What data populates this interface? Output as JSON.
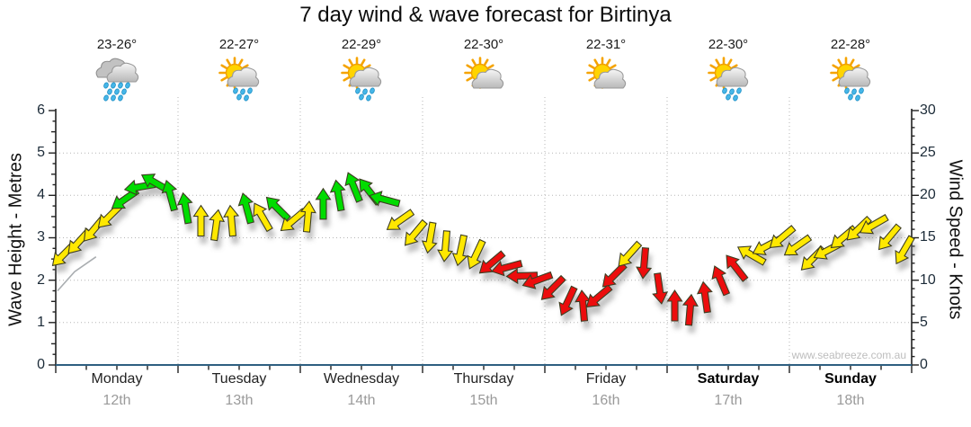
{
  "title": "7 day wind & wave forecast for Birtinya",
  "watermark": "www.seabreeze.com.au",
  "axes": {
    "left_label": "Wave Height - Metres",
    "right_label": "Wind Speed - Knots",
    "left_ticks": [
      "0",
      "1",
      "2",
      "3",
      "4",
      "5",
      "6"
    ],
    "right_ticks": [
      "0",
      "5",
      "10",
      "15",
      "20",
      "25",
      "30"
    ]
  },
  "days": [
    {
      "name": "Monday",
      "date": "12th",
      "temp": "23-26°",
      "icon": "rain"
    },
    {
      "name": "Tuesday",
      "date": "13th",
      "temp": "22-27°",
      "icon": "sun-shower"
    },
    {
      "name": "Wednesday",
      "date": "14th",
      "temp": "22-29°",
      "icon": "sun-shower"
    },
    {
      "name": "Thursday",
      "date": "15th",
      "temp": "22-30°",
      "icon": "partly-cloudy"
    },
    {
      "name": "Friday",
      "date": "16th",
      "temp": "22-31°",
      "icon": "partly-cloudy"
    },
    {
      "name": "Saturday",
      "date": "17th",
      "temp": "22-30°",
      "icon": "sun-shower"
    },
    {
      "name": "Sunday",
      "date": "18th",
      "temp": "22-28°",
      "icon": "sun-shower"
    }
  ],
  "chart_data": {
    "type": "scatter",
    "marker": "wind-arrow",
    "title": "7 day wind & wave forecast for Birtinya",
    "x_categories": [
      "Monday 12th",
      "Tuesday 13th",
      "Wednesday 14th",
      "Thursday 15th",
      "Friday 16th",
      "Saturday 17th",
      "Sunday 18th"
    ],
    "points_per_day": 8,
    "y_left": {
      "label": "Wave Height - Metres",
      "range": [
        0,
        6
      ],
      "minor_step": 0.25,
      "major_step": 1
    },
    "y_right": {
      "label": "Wind Speed - Knots",
      "range": [
        0,
        30
      ],
      "minor_step": 1,
      "major_step": 5
    },
    "grid": {
      "horizontal_at_metres": [
        1,
        2,
        3,
        4,
        5
      ],
      "vertical_at_day_boundaries": [
        1,
        2,
        3,
        4,
        5,
        6
      ],
      "style": "dotted"
    },
    "palette": {
      "g": "#00DC00",
      "y": "#FFE800",
      "r": "#EC1111"
    },
    "knots": [
      13,
      14.5,
      16,
      17.5,
      19.5,
      21,
      21.5,
      20,
      18.5,
      17,
      16.5,
      17,
      18.5,
      17.5,
      18.5,
      17,
      17.5,
      19,
      20,
      21,
      20.5,
      19.5,
      17,
      15.5,
      15,
      14,
      13.5,
      13,
      12,
      11.5,
      10.5,
      10,
      9,
      7.5,
      7,
      8,
      10.5,
      13,
      12,
      9,
      7,
      6.5,
      8,
      10,
      11.5,
      13,
      14,
      15,
      14,
      12.5,
      13.5,
      15,
      16,
      16.5,
      15,
      13.5
    ],
    "color": [
      "y",
      "y",
      "y",
      "y",
      "g",
      "g",
      "g",
      "g",
      "g",
      "y",
      "y",
      "y",
      "g",
      "y",
      "g",
      "y",
      "y",
      "g",
      "g",
      "g",
      "g",
      "g",
      "y",
      "y",
      "y",
      "y",
      "y",
      "y",
      "r",
      "r",
      "r",
      "r",
      "r",
      "r",
      "r",
      "r",
      "r",
      "y",
      "r",
      "r",
      "r",
      "r",
      "r",
      "r",
      "r",
      "y",
      "y",
      "y",
      "y",
      "y",
      "y",
      "y",
      "y",
      "y",
      "y",
      "y"
    ],
    "dir_deg": [
      225,
      222,
      220,
      225,
      235,
      260,
      300,
      345,
      350,
      0,
      8,
      355,
      345,
      330,
      315,
      230,
      5,
      0,
      350,
      338,
      322,
      285,
      235,
      220,
      190,
      185,
      192,
      205,
      230,
      255,
      268,
      250,
      225,
      205,
      355,
      230,
      225,
      222,
      185,
      172,
      0,
      5,
      352,
      337,
      322,
      300,
      242,
      230,
      235,
      225,
      242,
      230,
      226,
      240,
      220,
      210
    ],
    "wave_line_visible_segment_metres": [
      [
        0,
        1.75
      ],
      [
        0.02,
        2.2
      ],
      [
        0.045,
        2.55
      ]
    ]
  }
}
